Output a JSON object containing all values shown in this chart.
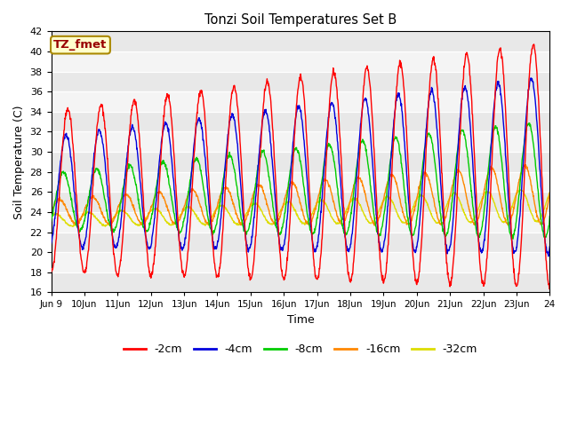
{
  "title": "Tonzi Soil Temperatures Set B",
  "xlabel": "Time",
  "ylabel": "Soil Temperature (C)",
  "ylim": [
    16,
    42
  ],
  "yticks": [
    16,
    18,
    20,
    22,
    24,
    26,
    28,
    30,
    32,
    34,
    36,
    38,
    40,
    42
  ],
  "annotation": "TZ_fmet",
  "colors": {
    "-2cm": "#ff0000",
    "-4cm": "#0000dd",
    "-8cm": "#00cc00",
    "-16cm": "#ff8800",
    "-32cm": "#dddd00"
  },
  "legend_labels": [
    "-2cm",
    "-4cm",
    "-8cm",
    "-16cm",
    "-32cm"
  ],
  "fig_bg": "#ffffff",
  "plot_bg": "#f0f0f0",
  "n_days": 15,
  "start_day": 9,
  "pts_per_day": 96
}
